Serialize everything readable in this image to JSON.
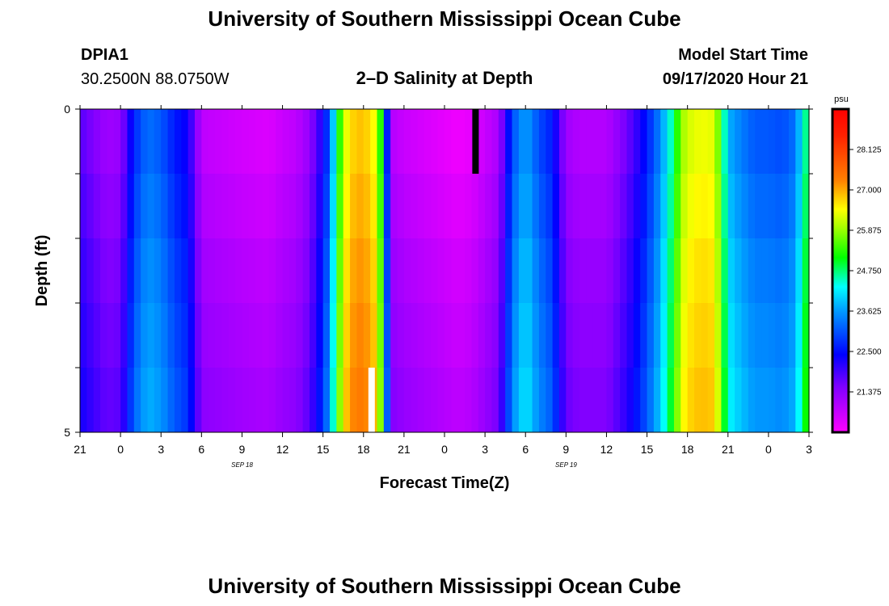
{
  "header": {
    "title": "University of Southern Mississippi Ocean Cube",
    "station_id": "DPIA1",
    "station_coords": "30.2500N 88.0750W",
    "plot_title": "2–D Salinity at Depth",
    "model_start_label": "Model Start Time",
    "model_start_value": "09/17/2020 Hour 21"
  },
  "footer": {
    "title": "University of Southern Mississippi Ocean Cube"
  },
  "chart_data": {
    "type": "heatmap",
    "title": "2–D Salinity at Depth",
    "xlabel": "Forecast Time(Z)",
    "ylabel": "Depth (ft)",
    "x_ticks": [
      "21",
      "0",
      "3",
      "6",
      "9",
      "12",
      "15",
      "18",
      "21",
      "0",
      "3",
      "6",
      "9",
      "12",
      "15",
      "18",
      "21",
      "0",
      "3"
    ],
    "x_hours": [
      0,
      3,
      6,
      9,
      12,
      15,
      18,
      21,
      24,
      27,
      30,
      33,
      36,
      39,
      42,
      45,
      48,
      51,
      54
    ],
    "date_labels": [
      {
        "text": "SEP 18",
        "hour": 15
      },
      {
        "text": "SEP 19",
        "hour": 39
      }
    ],
    "y_ticks": [
      "0",
      "5"
    ],
    "ylim": [
      0,
      5
    ],
    "depth_levels": [
      0,
      1,
      2,
      3,
      4,
      5
    ],
    "colorbar": {
      "unit": "psu",
      "min": 20.25,
      "max": 29.25,
      "tick_labels": [
        "28.125",
        "27.000",
        "25.875",
        "24.750",
        "23.625",
        "22.500",
        "21.375"
      ],
      "tick_values": [
        28.125,
        27.0,
        25.875,
        24.75,
        23.625,
        22.5,
        21.375
      ]
    },
    "surface_profile": [
      {
        "h": 0,
        "v": 21.8
      },
      {
        "h": 1,
        "v": 21.5
      },
      {
        "h": 2,
        "v": 21.2
      },
      {
        "h": 3,
        "v": 21.3
      },
      {
        "h": 4,
        "v": 22.7
      },
      {
        "h": 5,
        "v": 23.3
      },
      {
        "h": 6,
        "v": 23.1
      },
      {
        "h": 7,
        "v": 22.6
      },
      {
        "h": 8,
        "v": 22.3
      },
      {
        "h": 9,
        "v": 20.9
      },
      {
        "h": 12,
        "v": 20.7
      },
      {
        "h": 14,
        "v": 20.6
      },
      {
        "h": 15,
        "v": 20.8
      },
      {
        "h": 16,
        "v": 20.9
      },
      {
        "h": 17,
        "v": 21.3
      },
      {
        "h": 18,
        "v": 22.3
      },
      {
        "h": 18.5,
        "v": 23.2
      },
      {
        "h": 19,
        "v": 24.7
      },
      {
        "h": 19.5,
        "v": 26.0
      },
      {
        "h": 20,
        "v": 26.7
      },
      {
        "h": 21,
        "v": 26.9
      },
      {
        "h": 22,
        "v": 26.3
      },
      {
        "h": 22.5,
        "v": 24.3
      },
      {
        "h": 23,
        "v": 21.0
      },
      {
        "h": 24,
        "v": 20.8
      },
      {
        "h": 26,
        "v": 20.6
      },
      {
        "h": 27,
        "v": 20.5
      },
      {
        "h": 28,
        "v": 20.4
      },
      {
        "h": 29,
        "v": 20.5
      },
      {
        "h": 30,
        "v": 20.8
      },
      {
        "h": 31,
        "v": 21.1
      },
      {
        "h": 31.5,
        "v": 22.0
      },
      {
        "h": 32,
        "v": 23.0
      },
      {
        "h": 33,
        "v": 23.7
      },
      {
        "h": 34,
        "v": 23.0
      },
      {
        "h": 35,
        "v": 22.6
      },
      {
        "h": 36,
        "v": 21.2
      },
      {
        "h": 37,
        "v": 21.0
      },
      {
        "h": 39,
        "v": 21.0
      },
      {
        "h": 40,
        "v": 21.4
      },
      {
        "h": 41,
        "v": 21.9
      },
      {
        "h": 42,
        "v": 22.6
      },
      {
        "h": 43,
        "v": 23.5
      },
      {
        "h": 44,
        "v": 24.8
      },
      {
        "h": 44.5,
        "v": 25.8
      },
      {
        "h": 45,
        "v": 26.2
      },
      {
        "h": 46,
        "v": 26.4
      },
      {
        "h": 47,
        "v": 26.3
      },
      {
        "h": 47.5,
        "v": 25.2
      },
      {
        "h": 48,
        "v": 23.8
      },
      {
        "h": 49,
        "v": 23.4
      },
      {
        "h": 50,
        "v": 23.1
      },
      {
        "h": 51,
        "v": 23.1
      },
      {
        "h": 52,
        "v": 23.0
      },
      {
        "h": 53,
        "v": 23.3
      },
      {
        "h": 53.5,
        "v": 24.3
      },
      {
        "h": 54,
        "v": 25.0
      }
    ],
    "depth_offsets": [
      0,
      0.4,
      0.8,
      1.1,
      1.4,
      1.7
    ],
    "markers": [
      {
        "hour": 29.3,
        "depth_top": 0,
        "depth_bottom": 1,
        "color": "#000000"
      },
      {
        "hour": 21.6,
        "depth_top": 4,
        "depth_bottom": 5,
        "color": "#ffffff"
      }
    ]
  }
}
